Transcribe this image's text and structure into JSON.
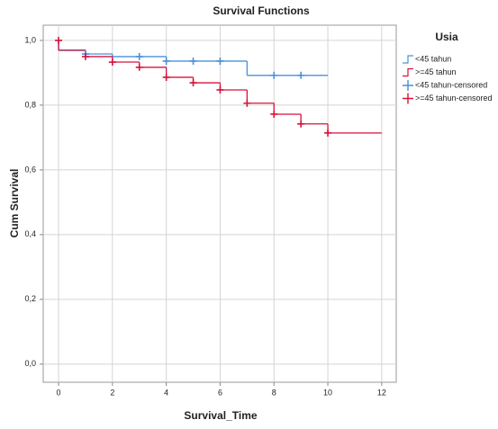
{
  "chart_data": {
    "type": "survival",
    "title": "Survival Functions",
    "x_label": "Survival_Time",
    "y_label": "Cum Survival",
    "legend_title": "Usia",
    "xlim": [
      -0.57,
      12.54
    ],
    "ylim": [
      -0.056,
      1.047
    ],
    "xticks": [
      0,
      2,
      4,
      6,
      8,
      10,
      12
    ],
    "yticks": [
      {
        "value": 0,
        "label": "0,0"
      },
      {
        "value": 0.2,
        "label": "0,2"
      },
      {
        "value": 0.4,
        "label": "0,4"
      },
      {
        "value": 0.6,
        "label": "0,6"
      },
      {
        "value": 0.8,
        "label": "0,8"
      },
      {
        "value": 1,
        "label": "1,0"
      }
    ],
    "grid": true,
    "series": [
      {
        "name": "<45 tahun",
        "kind": "step",
        "color": "#4a90d9",
        "x": [
          0,
          0,
          1,
          2,
          4,
          7,
          10
        ],
        "values": [
          1,
          0.969,
          0.958,
          0.95,
          0.936,
          0.892,
          0.892
        ]
      },
      {
        "name": ">=45 tahun",
        "kind": "step",
        "color": "#d8103a",
        "x": [
          0,
          0,
          1,
          2,
          3,
          4,
          5,
          6,
          7,
          8,
          9,
          10,
          12
        ],
        "values": [
          1,
          0.97,
          0.95,
          0.933,
          0.917,
          0.886,
          0.869,
          0.847,
          0.806,
          0.772,
          0.742,
          0.714,
          0.714
        ]
      },
      {
        "name": "<45 tahun-censored",
        "kind": "censored",
        "color": "#4a90d9",
        "x": [
          1,
          3,
          4,
          5,
          6,
          8,
          9
        ],
        "values": [
          0.958,
          0.95,
          0.936,
          0.936,
          0.936,
          0.892,
          0.892
        ]
      },
      {
        "name": ">=45 tahun-censored",
        "kind": "censored",
        "color": "#d8103a",
        "x": [
          0,
          1,
          2,
          3,
          4,
          5,
          6,
          7,
          8,
          9,
          10
        ],
        "values": [
          1,
          0.95,
          0.933,
          0.917,
          0.886,
          0.869,
          0.847,
          0.806,
          0.772,
          0.742,
          0.714
        ]
      }
    ]
  }
}
